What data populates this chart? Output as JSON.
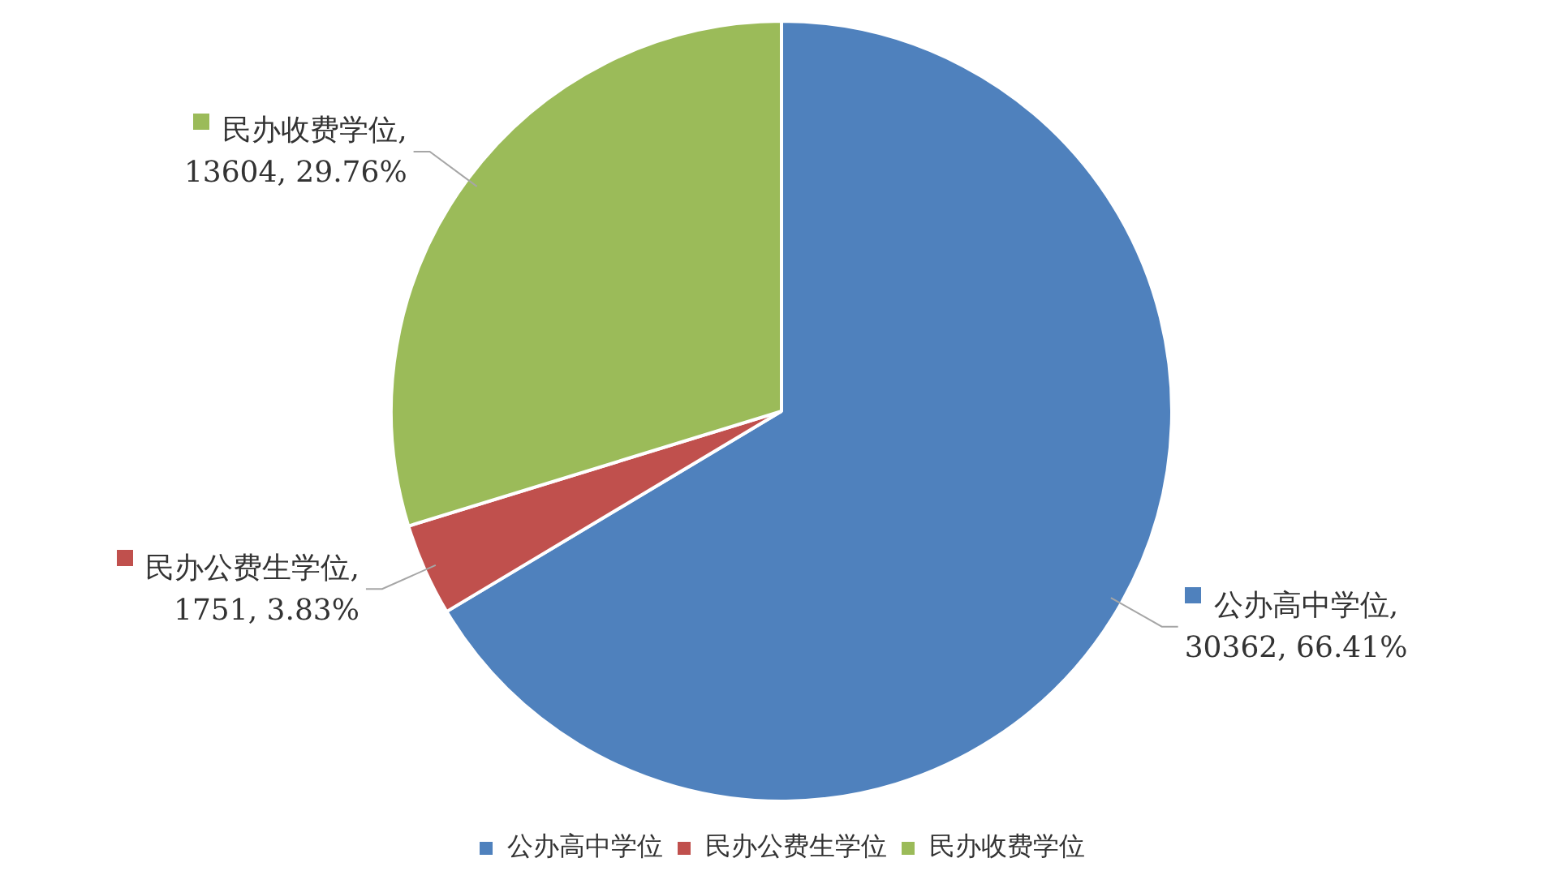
{
  "chart_data": {
    "type": "pie",
    "categories": [
      "公办高中学位",
      "民办公费生学位",
      "民办收费学位"
    ],
    "values": [
      30362,
      1751,
      13604
    ],
    "colors": [
      "#4f81bd",
      "#c0504d",
      "#9bbb59"
    ],
    "value_labels": [
      "公办高中学位,\n30362, 66.41%",
      "民办公费生学位,\n1751, 3.83%",
      "民办收费学位,\n13604, 29.76%"
    ],
    "legend": "bottom"
  }
}
